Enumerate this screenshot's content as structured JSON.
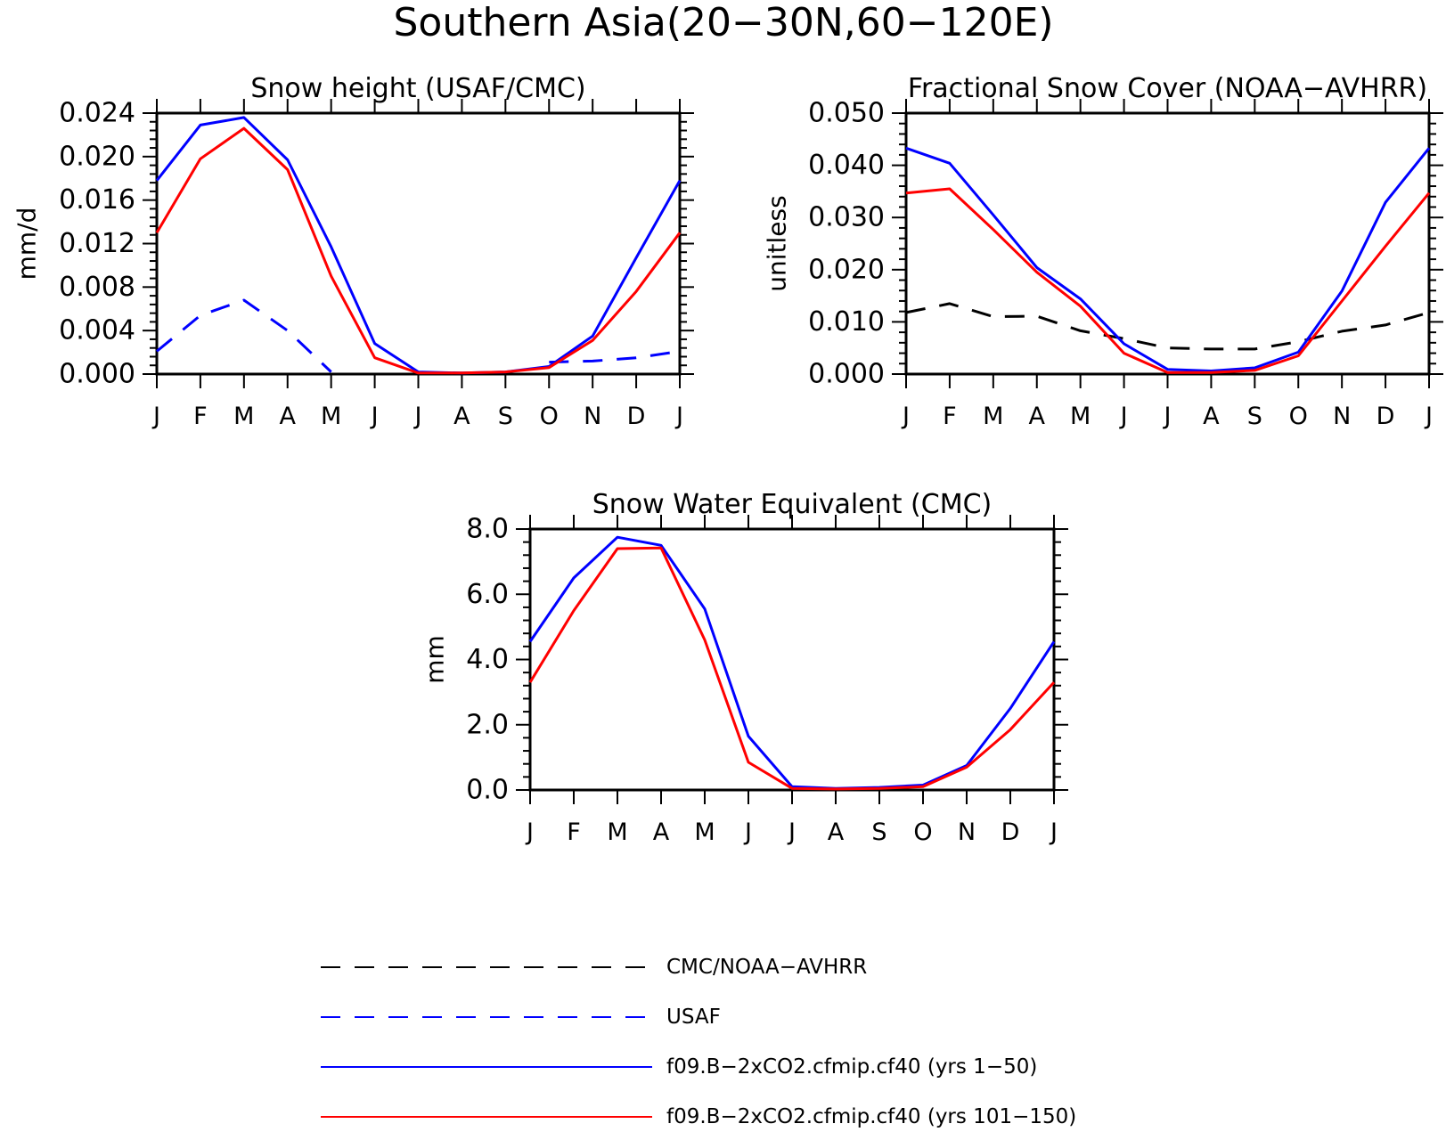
{
  "title": "Southern Asia(20−30N,60−120E)",
  "months": [
    "J",
    "F",
    "M",
    "A",
    "M",
    "J",
    "J",
    "A",
    "S",
    "O",
    "N",
    "D",
    "J"
  ],
  "colors": {
    "obs_cmc_noaa": "#000000",
    "obs_usaf": "#0000ff",
    "model_1_50": "#0000ff",
    "model_101_150": "#ff0000"
  },
  "legend": [
    {
      "label": "CMC/NOAA−AVHRR",
      "color": "#000000",
      "dash": "dashed"
    },
    {
      "label": "USAF",
      "color": "#0000ff",
      "dash": "dashed"
    },
    {
      "label": "f09.B−2xCO2.cfmip.cf40 (yrs 1−50)",
      "color": "#0000ff",
      "dash": "solid"
    },
    {
      "label": "f09.B−2xCO2.cfmip.cf40 (yrs 101−150)",
      "color": "#ff0000",
      "dash": "solid"
    }
  ],
  "chart_data": [
    {
      "type": "line",
      "title": "Snow height (USAF/CMC)",
      "ylabel": "mm/d",
      "ylim": [
        0,
        0.024
      ],
      "yticks": [
        0,
        0.004,
        0.008,
        0.012,
        0.016,
        0.02,
        0.024
      ],
      "ytick_labels": [
        "0.000",
        "0.004",
        "0.008",
        "0.012",
        "0.016",
        "0.020",
        "0.024"
      ],
      "series": [
        {
          "legend_index": 0,
          "color": "#000000",
          "dash": "dashed",
          "values": [
            0,
            0,
            0,
            0,
            0,
            0,
            0,
            0,
            0,
            0,
            0,
            0,
            0
          ]
        },
        {
          "legend_index": 1,
          "color": "#0000ff",
          "dash": "dashed",
          "values": [
            0.0021,
            0.0054,
            0.0068,
            0.004,
            0.0002,
            null,
            null,
            null,
            null,
            0.0011,
            0.0012,
            0.0015,
            0.0021
          ]
        },
        {
          "legend_index": 2,
          "color": "#0000ff",
          "dash": "solid",
          "values": [
            0.0178,
            0.0229,
            0.0236,
            0.0197,
            0.0117,
            0.0028,
            0.0002,
            0.0001,
            0.0002,
            0.0007,
            0.0035,
            0.0107,
            0.0178
          ]
        },
        {
          "legend_index": 3,
          "color": "#ff0000",
          "dash": "solid",
          "values": [
            0.013,
            0.0198,
            0.0226,
            0.0188,
            0.009,
            0.0015,
            0.0001,
            0.0001,
            0.0002,
            0.0006,
            0.0031,
            0.0076,
            0.013
          ]
        }
      ]
    },
    {
      "type": "line",
      "title": "Fractional Snow Cover (NOAA−AVHRR)",
      "ylabel": "unitless",
      "ylim": [
        0,
        0.05
      ],
      "yticks": [
        0,
        0.01,
        0.02,
        0.03,
        0.04,
        0.05
      ],
      "ytick_labels": [
        "0.000",
        "0.010",
        "0.020",
        "0.030",
        "0.040",
        "0.050"
      ],
      "series": [
        {
          "legend_index": 0,
          "color": "#000000",
          "dash": "dashed",
          "values": [
            0.0118,
            0.0135,
            0.011,
            0.0111,
            0.0083,
            0.0068,
            0.005,
            0.0048,
            0.0048,
            0.0062,
            0.0082,
            0.0094,
            0.0118
          ]
        },
        {
          "legend_index": 2,
          "color": "#0000ff",
          "dash": "solid",
          "values": [
            0.0433,
            0.0404,
            0.0305,
            0.0204,
            0.0144,
            0.0058,
            0.0009,
            0.0006,
            0.0012,
            0.0042,
            0.0159,
            0.0329,
            0.0433
          ]
        },
        {
          "legend_index": 3,
          "color": "#ff0000",
          "dash": "solid",
          "values": [
            0.0347,
            0.0355,
            0.0277,
            0.0195,
            0.013,
            0.004,
            0.0003,
            0.0003,
            0.0007,
            0.0035,
            0.014,
            0.0245,
            0.0347
          ]
        }
      ]
    },
    {
      "type": "line",
      "title": "Snow Water Equivalent (CMC)",
      "ylabel": "mm",
      "ylim": [
        0,
        8
      ],
      "yticks": [
        0,
        2,
        4,
        6,
        8
      ],
      "ytick_labels": [
        "0.0",
        "2.0",
        "4.0",
        "6.0",
        "8.0"
      ],
      "series": [
        {
          "legend_index": 0,
          "color": "#000000",
          "dash": "dashed",
          "values": [
            0,
            0,
            0,
            0,
            0,
            0,
            0,
            0,
            0,
            0,
            0,
            0,
            0
          ]
        },
        {
          "legend_index": 2,
          "color": "#0000ff",
          "dash": "solid",
          "values": [
            4.55,
            6.5,
            7.75,
            7.5,
            5.55,
            1.65,
            0.1,
            0.05,
            0.08,
            0.15,
            0.75,
            2.5,
            4.55
          ]
        },
        {
          "legend_index": 3,
          "color": "#ff0000",
          "dash": "solid",
          "values": [
            3.3,
            5.5,
            7.4,
            7.42,
            4.6,
            0.85,
            0.05,
            0.03,
            0.05,
            0.1,
            0.7,
            1.85,
            3.3
          ]
        }
      ]
    }
  ]
}
